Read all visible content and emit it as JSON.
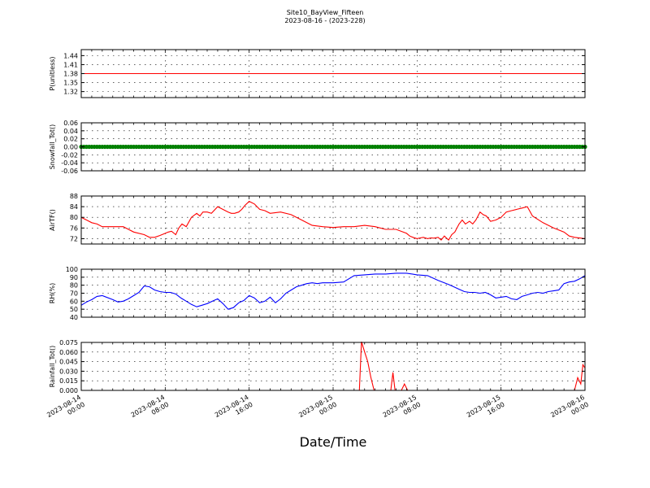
{
  "figure": {
    "title": "Site10_BayView_Fifteen",
    "subtitle": "2023-08-16 - (2023-228)",
    "xlabel": "Date/Time"
  },
  "chart_data": [
    {
      "type": "line",
      "ylabel": "P(unitless)",
      "ylim": [
        1.3,
        1.46
      ],
      "yticks": [
        "1.32",
        "1.35",
        "1.38",
        "1.41",
        "1.44"
      ],
      "ytick_values": [
        1.32,
        1.35,
        1.38,
        1.41,
        1.44
      ],
      "grid": true,
      "series": [
        {
          "color": "#ff0000",
          "marker": "none",
          "x": [
            0,
            48
          ],
          "y": [
            1.38,
            1.38
          ]
        }
      ]
    },
    {
      "type": "line",
      "ylabel": "Snowfall_Tot()",
      "ylim": [
        -0.06,
        0.06
      ],
      "yticks": [
        "-0.06",
        "-0.04",
        "-0.02",
        "0.00",
        "0.02",
        "0.04",
        "0.06"
      ],
      "ytick_values": [
        -0.06,
        -0.04,
        -0.02,
        0.0,
        0.02,
        0.04,
        0.06
      ],
      "grid": true,
      "series": [
        {
          "color": "#008000",
          "marker": "dot",
          "x": [
            0,
            48
          ],
          "y": [
            0.0,
            0.0
          ]
        }
      ]
    },
    {
      "type": "line",
      "ylabel": "AirTF()",
      "ylim": [
        70,
        88
      ],
      "yticks": [
        "72",
        "76",
        "80",
        "84",
        "88"
      ],
      "ytick_values": [
        72,
        76,
        80,
        84,
        88
      ],
      "grid": true,
      "series": [
        {
          "color": "#ff0000",
          "marker": "none",
          "x": [
            0,
            0.5,
            1,
            1.5,
            2,
            3,
            4,
            4.5,
            5,
            6,
            6.5,
            7,
            7.5,
            8,
            8.3,
            8.6,
            9,
            9.3,
            9.6,
            10,
            10.5,
            11,
            11.3,
            11.6,
            12,
            12.4,
            13,
            14,
            14.3,
            14.6,
            15,
            15.3,
            15.6,
            16,
            16.5,
            17,
            17.5,
            18,
            19,
            20,
            21,
            22,
            23,
            24,
            25,
            26,
            27,
            28,
            29,
            30,
            31,
            31.3,
            31.6,
            32,
            32.3,
            32.6,
            33,
            33.3,
            33.6,
            34,
            34.3,
            34.6,
            35,
            35.3,
            35.6,
            36,
            36.3,
            36.6,
            37,
            37.3,
            37.6,
            38,
            38.3,
            38.6,
            39,
            39.5,
            40,
            40.5,
            41,
            41.5,
            42,
            42.5,
            43,
            44,
            45,
            46,
            46.5,
            47,
            48
          ],
          "y": [
            80,
            79,
            78,
            77.5,
            76.5,
            76.5,
            76.5,
            75.5,
            74.5,
            73.5,
            72.5,
            72.5,
            73.2,
            74,
            74.5,
            74.8,
            73.5,
            76,
            77.5,
            76.5,
            80,
            81.5,
            80.5,
            82,
            82,
            81.5,
            84,
            82,
            81.5,
            81.5,
            82,
            83,
            84.5,
            86,
            85,
            83,
            82.5,
            81.5,
            82,
            81,
            79,
            77,
            76.5,
            76.2,
            76.5,
            76.5,
            77,
            76.5,
            75.5,
            75.5,
            74,
            73,
            72.5,
            72,
            72.3,
            72.5,
            72,
            72.3,
            72.2,
            72.5,
            71.5,
            73,
            71.5,
            73.5,
            74.5,
            77.5,
            79,
            77.5,
            78.5,
            77.5,
            79,
            82,
            81,
            80.5,
            78.5,
            79,
            80,
            82,
            82.5,
            83,
            83.5,
            84,
            80.5,
            78,
            76,
            74.5,
            73,
            72.5,
            72
          ]
        }
      ]
    },
    {
      "type": "line",
      "ylabel": "RH(%)",
      "ylim": [
        40,
        100
      ],
      "yticks": [
        "40",
        "50",
        "60",
        "70",
        "80",
        "90",
        "100"
      ],
      "ytick_values": [
        40,
        50,
        60,
        70,
        80,
        90,
        100
      ],
      "grid": true,
      "series": [
        {
          "color": "#0000ff",
          "marker": "none",
          "x": [
            0,
            0.5,
            1,
            1.5,
            2,
            3,
            3.5,
            4,
            4.5,
            5,
            5.5,
            6,
            6.5,
            7,
            7.5,
            8,
            8.5,
            9,
            9.5,
            10,
            10.5,
            11,
            11.5,
            12,
            12.5,
            13,
            13.5,
            14,
            14.5,
            15,
            15.5,
            16,
            16.5,
            17,
            17.5,
            18,
            18.5,
            19,
            19.5,
            20,
            20.5,
            21,
            21.5,
            22,
            22.5,
            23,
            24,
            25,
            26,
            27,
            28,
            29,
            30,
            31,
            32,
            33,
            34,
            35,
            35.5,
            36,
            36.5,
            37,
            37.5,
            38,
            38.5,
            39,
            39.5,
            40,
            40.5,
            41,
            41.5,
            42,
            42.5,
            43,
            43.5,
            44,
            44.5,
            45,
            45.5,
            46,
            46.5,
            47,
            47.5,
            48
          ],
          "y": [
            55,
            59,
            62,
            66,
            67,
            62,
            59,
            60,
            63,
            67,
            71,
            79,
            78,
            74,
            72,
            71,
            71,
            69,
            64,
            60,
            56,
            53,
            55,
            57,
            60,
            63,
            57,
            50,
            52,
            58,
            61,
            67,
            64,
            58,
            60,
            65,
            58,
            63,
            70,
            74,
            78,
            80,
            82,
            83,
            82,
            83,
            83,
            84,
            92,
            93,
            94,
            94,
            95,
            95,
            93,
            92,
            86,
            81,
            78,
            75,
            72,
            71,
            71,
            70,
            71,
            68,
            64,
            65,
            66,
            63,
            62,
            66,
            68,
            70,
            71,
            70,
            72,
            73,
            74,
            82,
            84,
            85,
            88,
            92
          ]
        }
      ]
    },
    {
      "type": "line",
      "ylabel": "Rainfall_Tot()",
      "ylim": [
        0.0,
        0.075
      ],
      "yticks": [
        "0.000",
        "0.015",
        "0.030",
        "0.045",
        "0.060",
        "0.075"
      ],
      "ytick_values": [
        0.0,
        0.015,
        0.03,
        0.045,
        0.06,
        0.075
      ],
      "grid": true,
      "series": [
        {
          "color": "#ff0000",
          "marker": "none",
          "x": [
            0,
            26.5,
            26.7,
            27,
            27.3,
            27.6,
            27.9,
            28.2,
            29.5,
            29.7,
            29.9,
            30.5,
            30.8,
            31.1,
            47,
            47.3,
            47.6,
            47.8,
            48
          ],
          "y": [
            0.0,
            0.0,
            0.076,
            0.06,
            0.045,
            0.02,
            0.0,
            0.0,
            0.0,
            0.028,
            0.0,
            0.0,
            0.01,
            0.0,
            0.0,
            0.02,
            0.01,
            0.04,
            0.035
          ]
        }
      ]
    }
  ],
  "x_axis": {
    "range_hours": [
      0,
      48
    ],
    "tick_hours": [
      0,
      8,
      16,
      24,
      32,
      40,
      48
    ],
    "tick_labels": [
      [
        "2023-08-14",
        "00:00"
      ],
      [
        "2023-08-14",
        "08:00"
      ],
      [
        "2023-08-14",
        "16:00"
      ],
      [
        "2023-08-15",
        "00:00"
      ],
      [
        "2023-08-15",
        "08:00"
      ],
      [
        "2023-08-15",
        "16:00"
      ],
      [
        "2023-08-16",
        "00:00"
      ]
    ]
  }
}
